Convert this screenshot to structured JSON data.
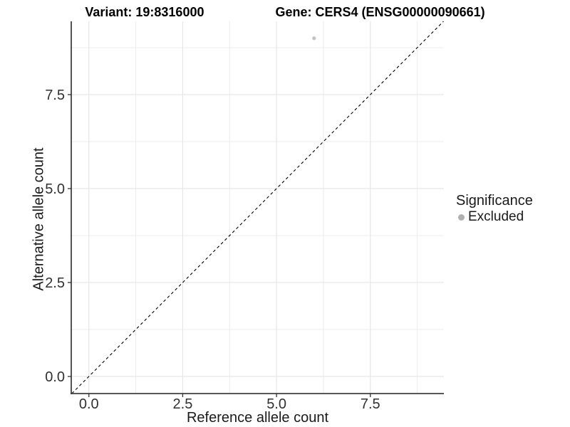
{
  "chart_data": {
    "type": "scatter",
    "title": {
      "variant": "Variant: 19:8316000",
      "gene": "Gene: CERS4 (ENSG00000090661)"
    },
    "xlabel": "Reference allele count",
    "ylabel": "Alternative allele count",
    "points": [
      {
        "x": 6,
        "y": 9,
        "significance": "Excluded"
      }
    ],
    "xlim": [
      -0.47,
      9.46
    ],
    "ylim": [
      -0.455,
      9.45
    ],
    "x_breaks": {
      "values": [
        0,
        2.5,
        5,
        7.5
      ],
      "labels": [
        "0.0",
        "2.5",
        "5.0",
        "7.5"
      ]
    },
    "y_breaks": {
      "values": [
        0,
        2.5,
        5,
        7.5
      ],
      "labels": [
        "0.0",
        "2.5",
        "5.0",
        "7.5"
      ]
    },
    "x_minor_breaks": [
      1.25,
      3.75,
      6.25,
      8.75
    ],
    "y_minor_breaks": [
      1.25,
      3.75,
      6.25,
      8.75
    ],
    "grid": "on",
    "reference_line": {
      "type": "identity",
      "slope": 1,
      "intercept": 0,
      "style": "dashed"
    },
    "point_style": {
      "color": "#c3c3c3",
      "radius_px": 2.6
    },
    "legend": {
      "title": "Significance",
      "position": "right",
      "items": [
        {
          "label": "Excluded",
          "color": "#b0b0b0"
        }
      ]
    },
    "colors": {
      "grid_major": "#e4e4e4",
      "grid_minor": "#ececec",
      "axis_line": "#404040",
      "tick_mark": "#333333",
      "tick_label": "#303030",
      "reference_line": "#000000",
      "background": "#ffffff"
    }
  }
}
